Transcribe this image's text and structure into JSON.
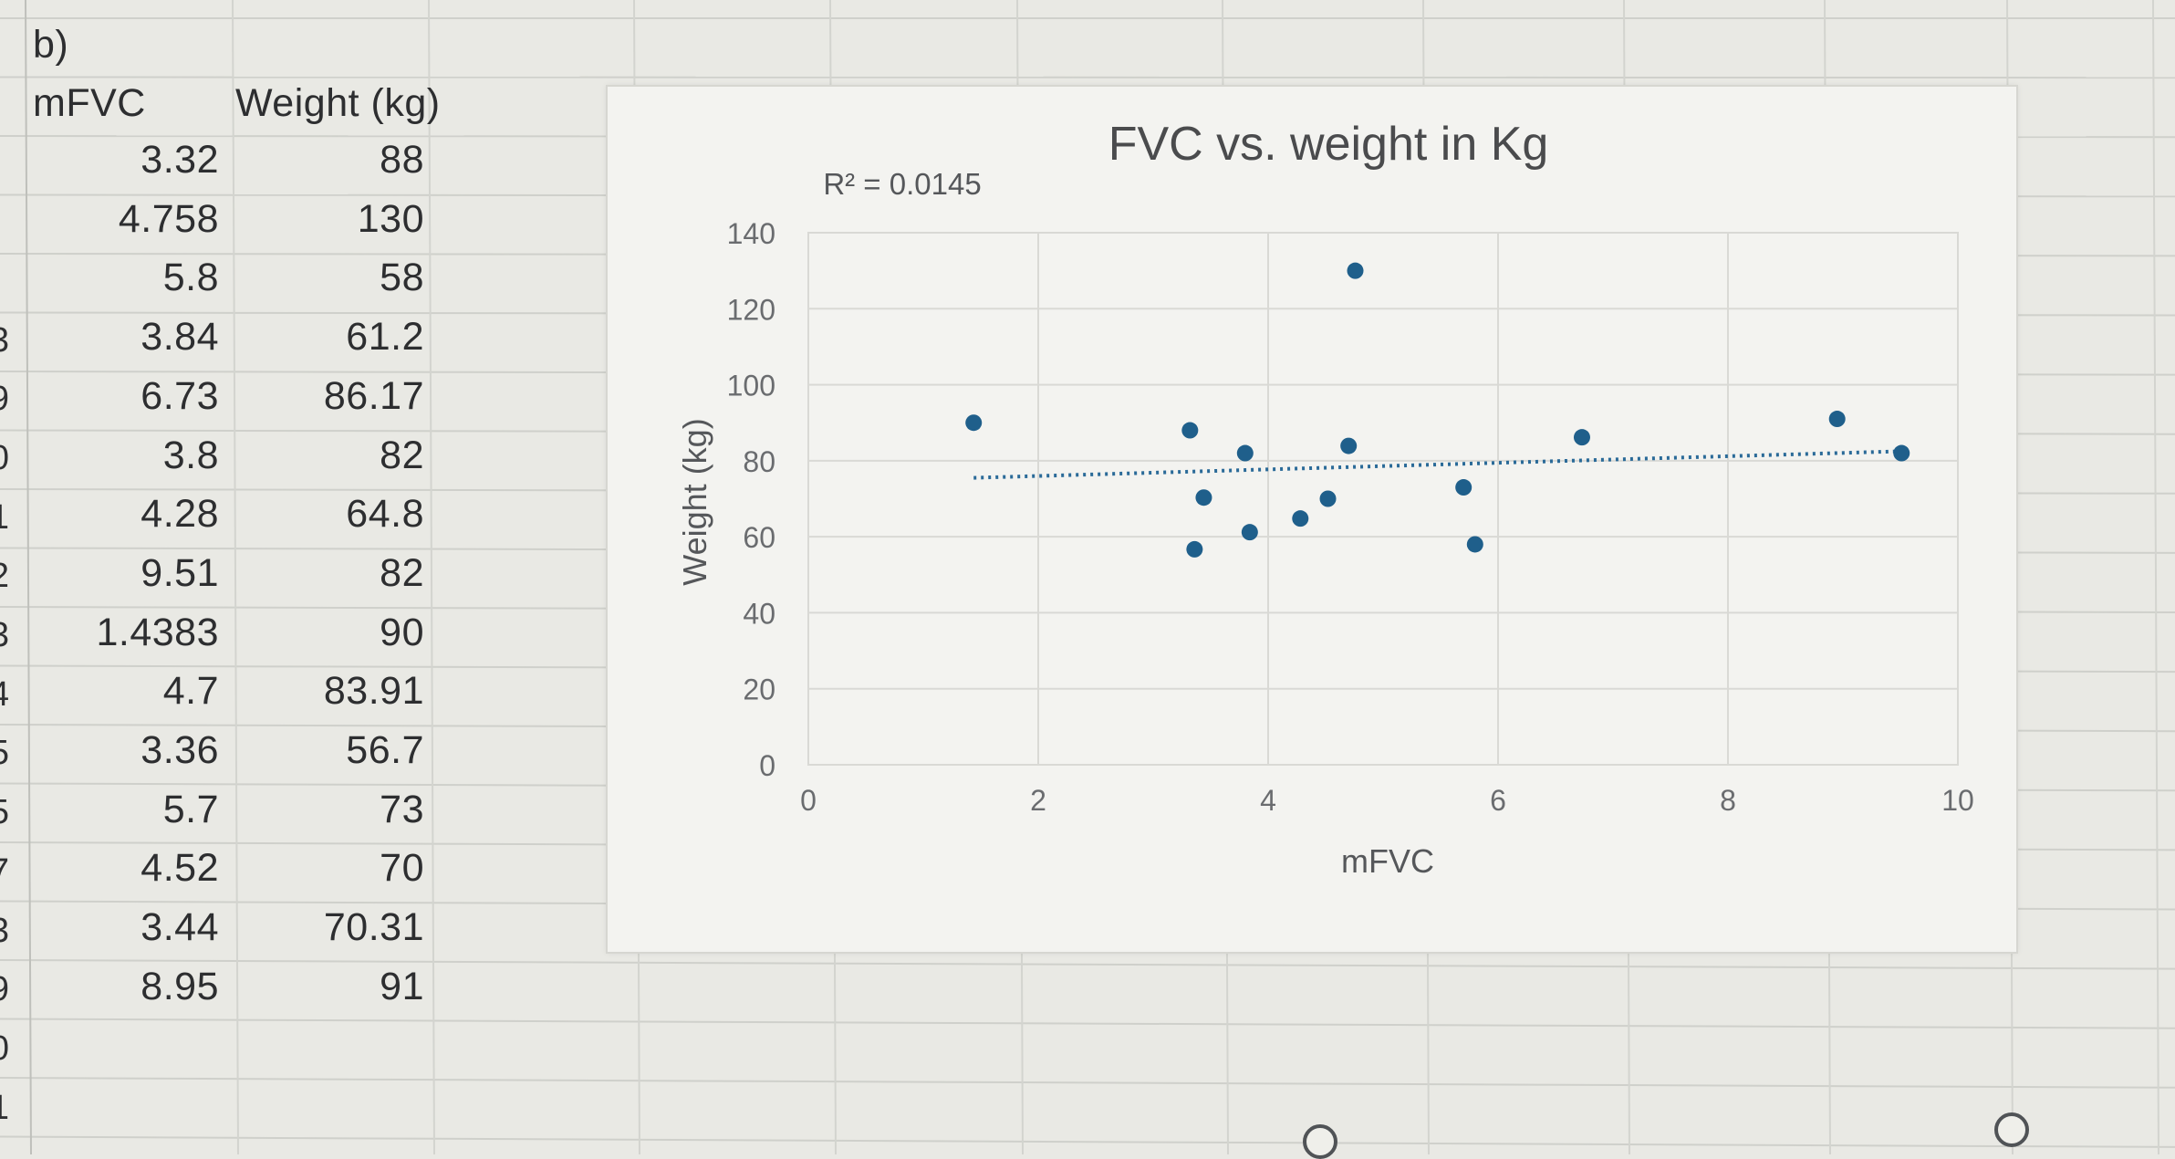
{
  "sheet": {
    "section_label": "b)",
    "headers": {
      "col_a": "mFVC",
      "col_b": "Weight (kg)"
    },
    "rows": [
      {
        "mfvc": "3.32",
        "weight": "88"
      },
      {
        "mfvc": "4.758",
        "weight": "130"
      },
      {
        "mfvc": "5.8",
        "weight": "58"
      },
      {
        "mfvc": "3.84",
        "weight": "61.2"
      },
      {
        "mfvc": "6.73",
        "weight": "86.17"
      },
      {
        "mfvc": "3.8",
        "weight": "82"
      },
      {
        "mfvc": "4.28",
        "weight": "64.8"
      },
      {
        "mfvc": "9.51",
        "weight": "82"
      },
      {
        "mfvc": "1.4383",
        "weight": "90"
      },
      {
        "mfvc": "4.7",
        "weight": "83.91"
      },
      {
        "mfvc": "3.36",
        "weight": "56.7"
      },
      {
        "mfvc": "5.7",
        "weight": "73"
      },
      {
        "mfvc": "4.52",
        "weight": "70"
      },
      {
        "mfvc": "3.44",
        "weight": "70.31"
      },
      {
        "mfvc": "8.95",
        "weight": "91"
      }
    ],
    "row_numbers": [
      "",
      "",
      "",
      "",
      "",
      "3",
      "9",
      "0",
      "1",
      "2",
      "3",
      "4",
      "5",
      "5",
      "7",
      "3",
      "9",
      "0",
      "1"
    ]
  },
  "chart_data": {
    "type": "scatter",
    "title": "FVC vs. weight in Kg",
    "xlabel": "mFVC",
    "ylabel": "Weight (kg)",
    "xlim": [
      0,
      10
    ],
    "ylim": [
      0,
      140
    ],
    "x_ticks": [
      "0",
      "2",
      "4",
      "6",
      "8",
      "10"
    ],
    "y_ticks": [
      "0",
      "20",
      "40",
      "60",
      "80",
      "100",
      "120",
      "140"
    ],
    "grid": true,
    "legend": "none",
    "marker_color": "#1f5f8b",
    "trendline": {
      "type": "linear",
      "style": "dotted",
      "from": [
        1.4383,
        75.5
      ],
      "to": [
        9.51,
        82.5
      ],
      "r_squared_label": "R² = 0.0145"
    },
    "points": [
      {
        "x": 3.32,
        "y": 88
      },
      {
        "x": 4.758,
        "y": 130
      },
      {
        "x": 5.8,
        "y": 58
      },
      {
        "x": 3.84,
        "y": 61.2
      },
      {
        "x": 6.73,
        "y": 86.17
      },
      {
        "x": 3.8,
        "y": 82
      },
      {
        "x": 4.28,
        "y": 64.8
      },
      {
        "x": 9.51,
        "y": 82
      },
      {
        "x": 1.4383,
        "y": 90
      },
      {
        "x": 4.7,
        "y": 83.91
      },
      {
        "x": 3.36,
        "y": 56.7
      },
      {
        "x": 5.7,
        "y": 73
      },
      {
        "x": 4.52,
        "y": 70
      },
      {
        "x": 3.44,
        "y": 70.31
      },
      {
        "x": 8.95,
        "y": 91
      }
    ]
  }
}
